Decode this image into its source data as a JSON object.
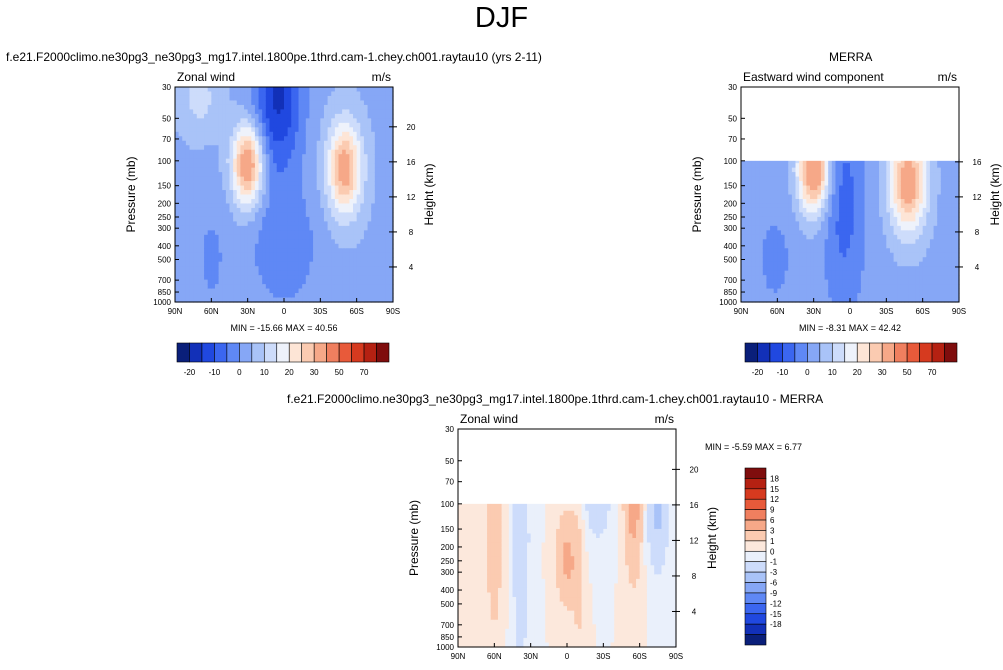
{
  "figure": {
    "title": "DJF"
  },
  "colors": {
    "abs_scale": [
      "#0a1f7a",
      "#1230b8",
      "#2048e0",
      "#3b66f0",
      "#5f88f5",
      "#86a7f6",
      "#a9c3f8",
      "#cddcfb",
      "#eef2fb",
      "#fde5d6",
      "#fbcbb1",
      "#f6a888",
      "#f07f5f",
      "#e85a3a",
      "#d63a1f",
      "#b52112",
      "#7f0d0d"
    ],
    "diff_scale": [
      "#0a1f7a",
      "#1230b8",
      "#2048e0",
      "#3b66f0",
      "#5f88f5",
      "#86a7f6",
      "#a9c3f8",
      "#cddcfb",
      "#eaf0fb",
      "#fce8dc",
      "#fbcbb1",
      "#f6a888",
      "#f07f5f",
      "#e85a3a",
      "#d63a1f",
      "#b52112",
      "#7f0d0d"
    ]
  },
  "chart_data": [
    {
      "type": "heatmap",
      "title": "f.e21.F2000climo.ne30pg3_ne30pg3_mg17.intel.1800pe.1thrd.cam-1.chey.ch001.raytau10 (yrs 2-11)",
      "left_label": "Zonal wind",
      "units": "m/s",
      "ylabel": "Pressure (mb)",
      "y2label": "Height (km)",
      "xticks": [
        "90N",
        "60N",
        "30N",
        "0",
        "30S",
        "60S",
        "90S"
      ],
      "yticks": [
        "30",
        "50",
        "70",
        "100",
        "150",
        "200",
        "250",
        "300",
        "400",
        "500",
        "700",
        "850",
        "1000"
      ],
      "y2ticks": [
        "20",
        "16",
        "12",
        "8",
        "4"
      ],
      "stats": "MIN = -15.66   MAX =  40.56",
      "min": -15.66,
      "max": 40.56,
      "colorbar_labels": [
        "-20",
        "-10",
        "0",
        "10",
        "20",
        "30",
        "50",
        "70"
      ]
    },
    {
      "type": "heatmap",
      "title": "MERRA",
      "left_label": "Eastward wind component",
      "units": "m/s",
      "ylabel": "Pressure (mb)",
      "y2label": "Height (km)",
      "xticks": [
        "90N",
        "60N",
        "30N",
        "0",
        "30S",
        "60S",
        "90S"
      ],
      "yticks": [
        "30",
        "50",
        "70",
        "100",
        "150",
        "200",
        "250",
        "300",
        "400",
        "500",
        "700",
        "850",
        "1000"
      ],
      "y2ticks": [
        "16",
        "12",
        "8",
        "4"
      ],
      "stats": "MIN = -8.31   MAX =  42.42",
      "min": -8.31,
      "max": 42.42,
      "colorbar_labels": [
        "-20",
        "-10",
        "0",
        "10",
        "20",
        "30",
        "50",
        "70"
      ]
    },
    {
      "type": "heatmap",
      "title": "f.e21.F2000climo.ne30pg3_ne30pg3_mg17.intel.1800pe.1thrd.cam-1.chey.ch001.raytau10 - MERRA",
      "left_label": "Zonal wind",
      "units": "m/s",
      "ylabel": "Pressure (mb)",
      "y2label": "Height (km)",
      "xticks": [
        "90N",
        "60N",
        "30N",
        "0",
        "30S",
        "60S",
        "90S"
      ],
      "yticks": [
        "30",
        "50",
        "70",
        "100",
        "150",
        "200",
        "250",
        "300",
        "400",
        "500",
        "700",
        "850",
        "1000"
      ],
      "y2ticks": [
        "20",
        "16",
        "12",
        "8",
        "4"
      ],
      "stats": "MIN = -5.59   MAX =  6.77",
      "min": -5.59,
      "max": 6.77,
      "colorbar_labels": [
        "18",
        "15",
        "12",
        "9",
        "6",
        "3",
        "1",
        "0",
        "-1",
        "-3",
        "-6",
        "-9",
        "-12",
        "-15",
        "-18"
      ]
    }
  ]
}
